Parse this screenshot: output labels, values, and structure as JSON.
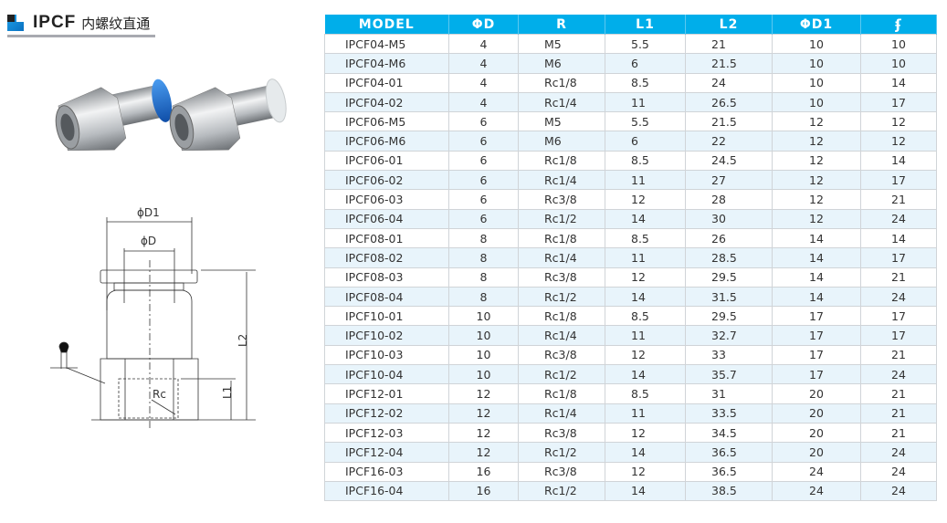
{
  "title": {
    "code": "IPCF",
    "name": "内螺纹直通"
  },
  "diagram": {
    "d1": "ϕD1",
    "d": "ϕD",
    "l1": "L1",
    "l2": "L2",
    "rc": "Rc"
  },
  "colors": {
    "header": "#00aeea",
    "stripe": "#e8f4fb",
    "cap_blue": "#1e6fd0",
    "cap_white": "#e8ecee"
  },
  "table": {
    "headers": [
      "MODEL",
      "ΦD",
      "R",
      "L1",
      "L2",
      "ΦD1",
      "wrench-icon"
    ],
    "rows": [
      [
        "IPCF04-M5",
        "4",
        "M5",
        "5.5",
        "21",
        "10",
        "10"
      ],
      [
        "IPCF04-M6",
        "4",
        "M6",
        "6",
        "21.5",
        "10",
        "10"
      ],
      [
        "IPCF04-01",
        "4",
        "Rc1/8",
        "8.5",
        "24",
        "10",
        "14"
      ],
      [
        "IPCF04-02",
        "4",
        "Rc1/4",
        "11",
        "26.5",
        "10",
        "17"
      ],
      [
        "IPCF06-M5",
        "6",
        "M5",
        "5.5",
        "21.5",
        "12",
        "12"
      ],
      [
        "IPCF06-M6",
        "6",
        "M6",
        "6",
        "22",
        "12",
        "12"
      ],
      [
        "IPCF06-01",
        "6",
        "Rc1/8",
        "8.5",
        "24.5",
        "12",
        "14"
      ],
      [
        "IPCF06-02",
        "6",
        "Rc1/4",
        "11",
        "27",
        "12",
        "17"
      ],
      [
        "IPCF06-03",
        "6",
        "Rc3/8",
        "12",
        "28",
        "12",
        "21"
      ],
      [
        "IPCF06-04",
        "6",
        "Rc1/2",
        "14",
        "30",
        "12",
        "24"
      ],
      [
        "IPCF08-01",
        "8",
        "Rc1/8",
        "8.5",
        "26",
        "14",
        "14"
      ],
      [
        "IPCF08-02",
        "8",
        "Rc1/4",
        "11",
        "28.5",
        "14",
        "17"
      ],
      [
        "IPCF08-03",
        "8",
        "Rc3/8",
        "12",
        "29.5",
        "14",
        "21"
      ],
      [
        "IPCF08-04",
        "8",
        "Rc1/2",
        "14",
        "31.5",
        "14",
        "24"
      ],
      [
        "IPCF10-01",
        "10",
        "Rc1/8",
        "8.5",
        "29.5",
        "17",
        "17"
      ],
      [
        "IPCF10-02",
        "10",
        "Rc1/4",
        "11",
        "32.7",
        "17",
        "17"
      ],
      [
        "IPCF10-03",
        "10",
        "Rc3/8",
        "12",
        "33",
        "17",
        "21"
      ],
      [
        "IPCF10-04",
        "10",
        "Rc1/2",
        "14",
        "35.7",
        "17",
        "24"
      ],
      [
        "IPCF12-01",
        "12",
        "Rc1/8",
        "8.5",
        "31",
        "20",
        "21"
      ],
      [
        "IPCF12-02",
        "12",
        "Rc1/4",
        "11",
        "33.5",
        "20",
        "21"
      ],
      [
        "IPCF12-03",
        "12",
        "Rc3/8",
        "12",
        "34.5",
        "20",
        "21"
      ],
      [
        "IPCF12-04",
        "12",
        "Rc1/2",
        "14",
        "36.5",
        "20",
        "24"
      ],
      [
        "IPCF16-03",
        "16",
        "Rc3/8",
        "12",
        "36.5",
        "24",
        "24"
      ],
      [
        "IPCF16-04",
        "16",
        "Rc1/2",
        "14",
        "38.5",
        "24",
        "24"
      ]
    ]
  }
}
